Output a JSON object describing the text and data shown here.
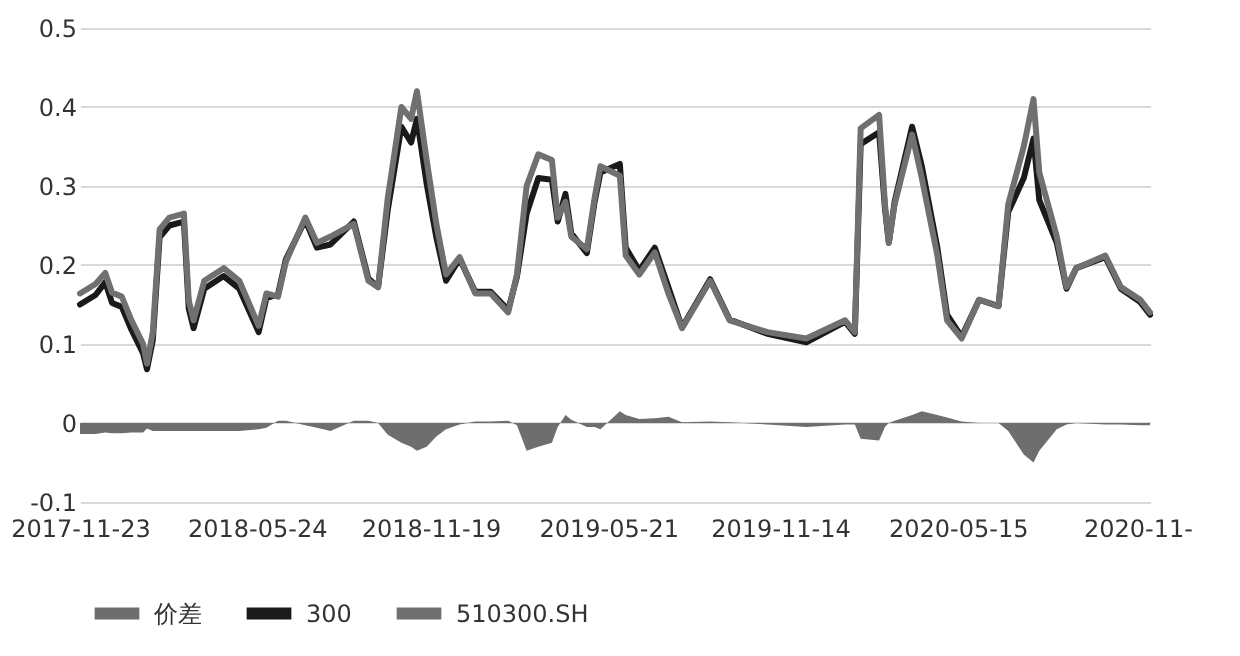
{
  "chart_data": {
    "type": "line",
    "x": [
      "2017-11-23",
      "2017-12-09",
      "2017-12-19",
      "2017-12-26",
      "2018-01-05",
      "2018-01-15",
      "2018-01-27",
      "2018-01-31",
      "2018-02-06",
      "2018-02-13",
      "2018-02-23",
      "2018-03-10",
      "2018-03-15",
      "2018-03-20",
      "2018-03-31",
      "2018-04-20",
      "2018-05-06",
      "2018-05-26",
      "2018-06-03",
      "2018-06-15",
      "2018-06-23",
      "2018-07-13",
      "2018-07-25",
      "2018-08-08",
      "2018-09-01",
      "2018-09-16",
      "2018-09-26",
      "2018-10-06",
      "2018-10-20",
      "2018-10-30",
      "2018-11-05",
      "2018-11-15",
      "2018-11-25",
      "2018-12-05",
      "2018-12-19",
      "2019-01-04",
      "2019-01-20",
      "2019-02-07",
      "2019-02-16",
      "2019-02-26",
      "2019-03-10",
      "2019-03-24",
      "2019-03-30",
      "2019-04-07",
      "2019-04-13",
      "2019-04-29",
      "2019-05-07",
      "2019-05-13",
      "2019-06-02",
      "2019-06-08",
      "2019-06-22",
      "2019-07-08",
      "2019-07-22",
      "2019-08-05",
      "2019-09-03",
      "2019-09-23",
      "2019-11-01",
      "2019-12-11",
      "2020-01-20",
      "2020-01-30",
      "2020-02-05",
      "2020-02-24",
      "2020-03-01",
      "2020-03-05",
      "2020-03-11",
      "2020-03-29",
      "2020-04-08",
      "2020-04-24",
      "2020-05-04",
      "2020-05-19",
      "2020-06-06",
      "2020-06-26",
      "2020-07-06",
      "2020-07-22",
      "2020-08-01",
      "2020-08-07",
      "2020-08-25",
      "2020-09-04",
      "2020-09-14",
      "2020-10-14",
      "2020-10-30",
      "2020-11-19",
      "2020-11-29"
    ],
    "series": [
      {
        "name": "价差",
        "type": "area",
        "color": "#6e6e6e",
        "values": [
          -0.014,
          -0.014,
          -0.012,
          -0.013,
          -0.013,
          -0.012,
          -0.012,
          -0.007,
          -0.01,
          -0.01,
          -0.01,
          -0.01,
          -0.01,
          -0.01,
          -0.01,
          -0.01,
          -0.01,
          -0.008,
          -0.006,
          0.003,
          0.003,
          -0.003,
          -0.006,
          -0.01,
          0.003,
          0.003,
          0,
          -0.015,
          -0.025,
          -0.03,
          -0.035,
          -0.03,
          -0.017,
          -0.008,
          -0.002,
          0.002,
          0.002,
          0.003,
          -0.003,
          -0.035,
          -0.03,
          -0.025,
          -0.005,
          0.01,
          0.004,
          -0.005,
          -0.005,
          -0.008,
          0.015,
          0.01,
          0.005,
          0.006,
          0.008,
          0.001,
          0.002,
          0.001,
          -0.002,
          -0.005,
          -0.002,
          -0.002,
          -0.02,
          -0.022,
          -0.005,
          0,
          0.003,
          0.01,
          0.015,
          0.01,
          0.007,
          0.002,
          0,
          0,
          -0.01,
          -0.04,
          -0.05,
          -0.035,
          -0.008,
          -0.002,
          0,
          -0.002,
          -0.002,
          -0.003,
          -0.003
        ]
      },
      {
        "name": "300",
        "color": "#1a1a1a",
        "values": [
          0.15,
          0.162,
          0.178,
          0.152,
          0.147,
          0.118,
          0.088,
          0.068,
          0.105,
          0.235,
          0.25,
          0.255,
          0.145,
          0.12,
          0.17,
          0.186,
          0.17,
          0.115,
          0.158,
          0.163,
          0.207,
          0.257,
          0.222,
          0.226,
          0.255,
          0.183,
          0.172,
          0.27,
          0.375,
          0.355,
          0.385,
          0.303,
          0.235,
          0.18,
          0.208,
          0.166,
          0.166,
          0.143,
          0.185,
          0.265,
          0.31,
          0.308,
          0.255,
          0.29,
          0.24,
          0.215,
          0.28,
          0.317,
          0.328,
          0.222,
          0.193,
          0.222,
          0.172,
          0.121,
          0.182,
          0.131,
          0.113,
          0.102,
          0.128,
          0.113,
          0.353,
          0.368,
          0.272,
          0.228,
          0.28,
          0.375,
          0.325,
          0.222,
          0.137,
          0.109,
          0.156,
          0.148,
          0.267,
          0.31,
          0.36,
          0.282,
          0.228,
          0.17,
          0.196,
          0.21,
          0.17,
          0.153,
          0.137
        ]
      },
      {
        "name": "510300.SH",
        "color": "#707070",
        "values": [
          0.164,
          0.176,
          0.19,
          0.165,
          0.16,
          0.13,
          0.1,
          0.075,
          0.115,
          0.245,
          0.26,
          0.265,
          0.155,
          0.13,
          0.18,
          0.196,
          0.18,
          0.123,
          0.164,
          0.16,
          0.204,
          0.26,
          0.228,
          0.236,
          0.252,
          0.18,
          0.172,
          0.285,
          0.4,
          0.385,
          0.42,
          0.333,
          0.252,
          0.188,
          0.21,
          0.164,
          0.164,
          0.14,
          0.188,
          0.3,
          0.34,
          0.333,
          0.26,
          0.28,
          0.236,
          0.22,
          0.285,
          0.325,
          0.313,
          0.212,
          0.188,
          0.216,
          0.164,
          0.12,
          0.18,
          0.13,
          0.115,
          0.107,
          0.13,
          0.115,
          0.373,
          0.39,
          0.277,
          0.228,
          0.277,
          0.365,
          0.31,
          0.212,
          0.13,
          0.107,
          0.156,
          0.148,
          0.277,
          0.35,
          0.41,
          0.317,
          0.236,
          0.172,
          0.196,
          0.212,
          0.172,
          0.156,
          0.14
        ]
      }
    ],
    "xlim": [
      "2017-11-23",
      "2020-11-29"
    ],
    "xticks": [
      {
        "value": "2017-11-23",
        "label": "2017-11-23"
      },
      {
        "value": "2018-05-24",
        "label": "2018-05-24"
      },
      {
        "value": "2018-11-19",
        "label": "2018-11-19"
      },
      {
        "value": "2019-05-21",
        "label": "2019-05-21"
      },
      {
        "value": "2019-11-14",
        "label": "2019-11-14"
      },
      {
        "value": "2020-05-15",
        "label": "2020-05-15"
      },
      {
        "value": "2020-11-16",
        "label": "2020-11-"
      }
    ],
    "ylim": [
      -0.1,
      0.5
    ],
    "yticks": [
      {
        "value": -0.1,
        "label": "-0.1"
      },
      {
        "value": 0,
        "label": "0"
      },
      {
        "value": 0.1,
        "label": "0.1"
      },
      {
        "value": 0.2,
        "label": "0.2"
      },
      {
        "value": 0.3,
        "label": "0.3"
      },
      {
        "value": 0.4,
        "label": "0.4"
      },
      {
        "value": 0.5,
        "label": "0.5"
      }
    ],
    "grid": "y",
    "legend": "bottom",
    "line_style": "solid"
  }
}
